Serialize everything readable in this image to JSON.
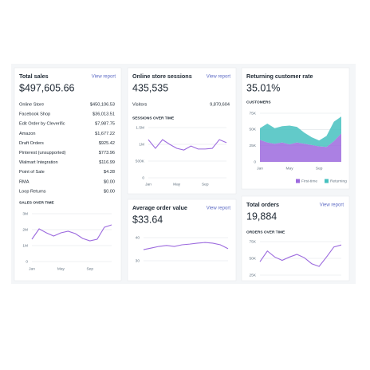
{
  "cards": [
    {
      "title": "Total sales",
      "link": "View report",
      "value": "$497,605.66",
      "rows": [
        [
          "Online Store",
          "$450,106.53"
        ],
        [
          "Facebook Shop",
          "$36,013.51"
        ],
        [
          "Edit Order by Cleverific",
          "$7,987.75"
        ],
        [
          "Amazon",
          "$1,677.22"
        ],
        [
          "Draft Orders",
          "$925.42"
        ],
        [
          "Pinterest (unsupported)",
          "$773.96"
        ],
        [
          "Walmart Integration",
          "$116.99"
        ],
        [
          "Point of Sale",
          "$4.28"
        ],
        [
          "RMA",
          "$0.00"
        ],
        [
          "Loop Returns",
          "$0.00"
        ]
      ],
      "chart_data": {
        "type": "line",
        "title": "SALES OVER TIME",
        "color": "#9c6ade",
        "categories": [
          "Jan",
          null,
          null,
          null,
          "May",
          null,
          null,
          null,
          "Sep",
          null,
          null,
          null
        ],
        "values": [
          1400000,
          2050000,
          1800000,
          1600000,
          1800000,
          1900000,
          1750000,
          1450000,
          1300000,
          1400000,
          2150000,
          2300000
        ],
        "ylim": [
          0,
          3000000
        ],
        "yticks": [
          0,
          {
            "value": 1000000,
            "label": "1M"
          },
          {
            "value": 2000000,
            "label": "2M"
          },
          {
            "value": 3000000,
            "label": "3M"
          }
        ],
        "grid": true
      }
    },
    {
      "title": "Online store sessions",
      "link": "View report",
      "value": "435,535",
      "rows": [
        [
          "Visitors",
          "9,870,604"
        ]
      ],
      "chart_data": {
        "type": "line",
        "title": "SESSIONS OVER TIME",
        "color": "#9c6ade",
        "categories": [
          "Jan",
          null,
          null,
          null,
          "May",
          null,
          null,
          null,
          "Sep",
          null,
          null,
          null
        ],
        "values": [
          1140000,
          880000,
          1140000,
          1000000,
          880000,
          830000,
          950000,
          860000,
          860000,
          880000,
          1140000,
          1050000
        ],
        "ylim": [
          0,
          1500000
        ],
        "yticks": [
          0,
          {
            "value": 500000,
            "label": "500K"
          },
          {
            "value": 1000000,
            "label": "1M"
          },
          {
            "value": 1500000,
            "label": "1.5M"
          }
        ],
        "grid": true
      }
    },
    {
      "title": "Average order value",
      "link": "View report",
      "value": "$33.64",
      "chart_data": {
        "type": "line",
        "color": "#9c6ade",
        "values": [
          34.8,
          35.5,
          36.2,
          36.6,
          36.2,
          36.9,
          37.2,
          37.6,
          37.9,
          37.6,
          36.9,
          35.2
        ],
        "ylim": [
          30,
          40
        ],
        "yticks": [
          30,
          40
        ],
        "grid": true
      }
    },
    {
      "title": "Returning customer rate",
      "value": "35.01%",
      "chart_data": {
        "type": "stacked-area",
        "title": "CUSTOMERS",
        "categories": [
          "Jan",
          null,
          null,
          null,
          "May",
          null,
          null,
          null,
          "Sep",
          null,
          null,
          null
        ],
        "series": [
          {
            "name": "First-time",
            "color": "#9c6ade",
            "values": [
              34000,
              30000,
              28000,
              30000,
              27000,
              30000,
              28000,
              26000,
              24000,
              23000,
              32000,
              44000
            ]
          },
          {
            "name": "Returning",
            "color": "#47c1bf",
            "values": [
              18000,
              29000,
              24000,
              25000,
              29000,
              24000,
              17000,
              12000,
              9000,
              17000,
              30000,
              26000
            ]
          }
        ],
        "ylim": [
          0,
          75000
        ],
        "yticks": [
          0,
          {
            "value": 25000,
            "label": "25K"
          },
          {
            "value": 50000,
            "label": "50K"
          },
          {
            "value": 75000,
            "label": "75K"
          }
        ],
        "grid": true
      }
    },
    {
      "title": "Total orders",
      "link": "View report",
      "value": "19,884",
      "chart_data": {
        "type": "line",
        "title": "ORDERS OVER TIME",
        "color": "#9c6ade",
        "values": [
          45000,
          61000,
          52000,
          47000,
          52000,
          56000,
          51000,
          42000,
          38000,
          52000,
          67000,
          70000
        ],
        "ylim": [
          25000,
          75000
        ],
        "yticks": [
          {
            "value": 25000,
            "label": "25K"
          },
          {
            "value": 50000,
            "label": "50K"
          },
          {
            "value": 75000,
            "label": "75K"
          }
        ],
        "grid": true
      }
    }
  ]
}
